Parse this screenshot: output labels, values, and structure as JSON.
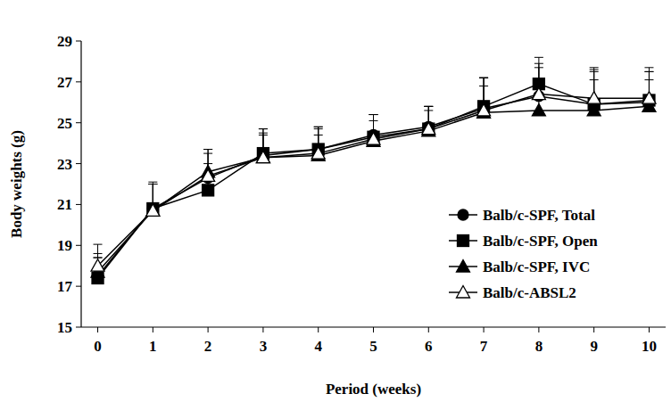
{
  "chart_data": {
    "type": "line",
    "x_label": "Period (weeks)",
    "y_label": "Body weights (g)",
    "x": [
      0,
      1,
      2,
      3,
      4,
      5,
      6,
      7,
      8,
      9,
      10
    ],
    "xlim": [
      -0.3,
      10.3
    ],
    "xticks": [
      0,
      1,
      2,
      3,
      4,
      5,
      6,
      7,
      8,
      9,
      10
    ],
    "ylim": [
      15,
      29
    ],
    "yticks": [
      15,
      17,
      19,
      21,
      23,
      25,
      27,
      29
    ],
    "grid": false,
    "legend": "lower-right",
    "series": [
      {
        "name": "Balb/c-SPF, Total",
        "color": "#000000",
        "marker": "circle",
        "line_style": "solid",
        "values": [
          17.5,
          20.8,
          22.3,
          23.4,
          23.7,
          24.4,
          24.8,
          25.7,
          26.3,
          25.9,
          26.0
        ],
        "errors": [
          0.9,
          1.3,
          1.2,
          1.3,
          1.1,
          1.0,
          1.0,
          1.5,
          1.4,
          1.7,
          1.5
        ]
      },
      {
        "name": "Balb/c-SPF, Open",
        "color": "#000000",
        "marker": "square",
        "line_style": "solid",
        "values": [
          17.4,
          20.8,
          21.7,
          23.5,
          23.7,
          24.3,
          24.7,
          25.8,
          26.9,
          25.9,
          26.1
        ],
        "errors": [
          1.0,
          1.2,
          1.3,
          1.2,
          1.1,
          1.1,
          1.1,
          1.4,
          1.3,
          1.6,
          1.4
        ]
      },
      {
        "name": "Balb/c-SPF, IVC",
        "color": "#000000",
        "marker": "triangle",
        "line_style": "solid",
        "values": [
          17.7,
          20.7,
          22.6,
          23.3,
          23.4,
          24.1,
          24.6,
          25.5,
          25.6,
          25.6,
          25.8
        ],
        "errors": [
          0.9,
          1.3,
          1.1,
          1.2,
          1.0,
          1.0,
          1.0,
          1.3,
          1.5,
          1.5,
          1.3
        ]
      },
      {
        "name": "Balb/c-ABSL2",
        "color": "#000000",
        "marker": "triangle-open",
        "line_style": "solid",
        "values": [
          18.0,
          20.7,
          22.4,
          23.3,
          23.5,
          24.2,
          24.7,
          25.6,
          26.4,
          26.2,
          26.2
        ],
        "errors": [
          1.05,
          1.3,
          1.3,
          1.1,
          1.2,
          1.2,
          1.1,
          1.6,
          1.5,
          1.5,
          1.5
        ]
      }
    ]
  }
}
